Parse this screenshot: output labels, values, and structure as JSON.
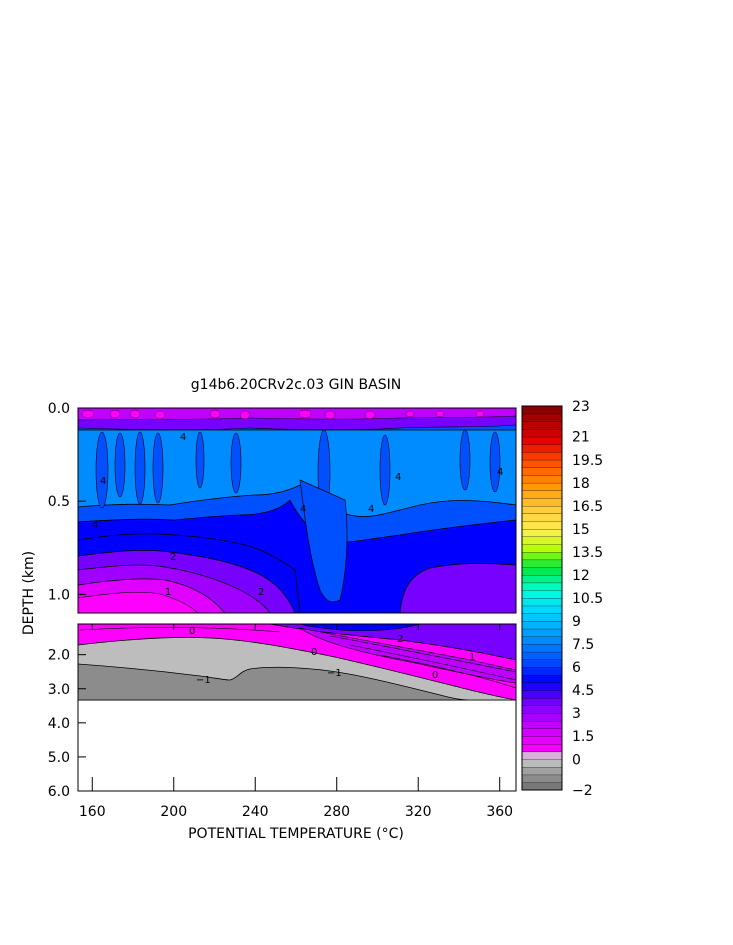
{
  "chart_data": {
    "type": "heatmap",
    "title": "g14b6.20CRv2c.03 GIN BASIN",
    "xlabel": "POTENTIAL TEMPERATURE (°C)",
    "ylabel": "DEPTH (km)",
    "xlim": [
      153,
      368
    ],
    "x_ticks": [
      "160",
      "200",
      "240",
      "280",
      "320",
      "360"
    ],
    "x_tick_values": [
      160,
      200,
      240,
      280,
      320,
      360
    ],
    "upper_panel": {
      "ylim": [
        0.0,
        1.1
      ],
      "y_ticks": [
        "0.0",
        "0.5",
        "1.0"
      ],
      "y_tick_values": [
        0.0,
        0.5,
        1.0
      ]
    },
    "lower_panel": {
      "ylim": [
        1.1,
        6.0
      ],
      "y_ticks": [
        "2.0",
        "3.0",
        "4.0",
        "5.0",
        "6.0"
      ],
      "y_tick_values": [
        2.0,
        3.0,
        4.0,
        5.0,
        6.0
      ]
    },
    "colorbar": {
      "tick_labels": [
        "23",
        "21",
        "19.5",
        "18",
        "16.5",
        "15",
        "13.5",
        "12",
        "10.5",
        "9",
        "7.5",
        "6",
        "4.5",
        "3",
        "1.5",
        "0",
        "−2"
      ],
      "tick_values": [
        23,
        21,
        19.5,
        18,
        16.5,
        15,
        13.5,
        12,
        10.5,
        9,
        7.5,
        6,
        4.5,
        3,
        1.5,
        0,
        -2
      ],
      "range": [
        -2,
        23
      ]
    },
    "contour_labels_upper": [
      "4",
      "4",
      "4",
      "4",
      "4",
      "4",
      "4",
      "2",
      "2",
      "1"
    ],
    "contour_labels_lower": [
      "0",
      "2",
      "0",
      "1",
      "−1",
      "−1",
      "0"
    ],
    "colors": {
      "magenta": "#ff00ff",
      "purple": "#7700ff",
      "blue": "#0000ff",
      "mid_blue": "#0050ff",
      "light_blue": "#008cff",
      "gray_light": "#bdbdbd",
      "gray_dark": "#8c8c8c"
    }
  }
}
